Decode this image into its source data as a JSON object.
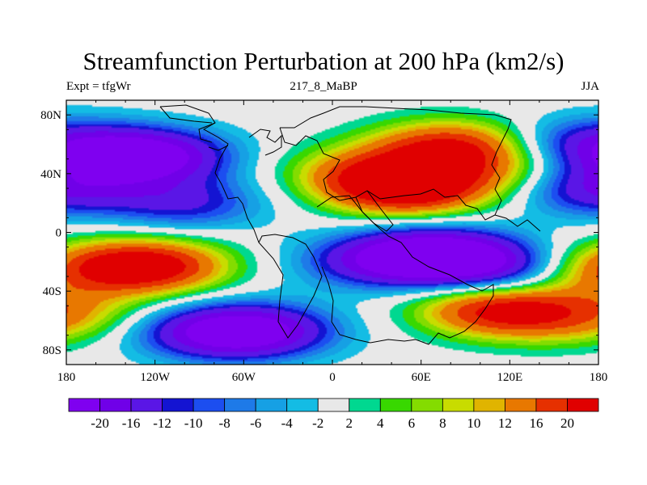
{
  "chart_data": {
    "type": "heatmap",
    "title": "Streamfunction Perturbation at 200 hPa (km2/s)",
    "subtitle_left": "Expt = tfgWr",
    "subtitle_center": "217_8_MaBP",
    "subtitle_right": "JJA",
    "x_range": [
      -180,
      180
    ],
    "y_range": [
      -90,
      90
    ],
    "x_ticks": [
      {
        "value": -180,
        "label": "180"
      },
      {
        "value": -120,
        "label": "120W"
      },
      {
        "value": -60,
        "label": "60W"
      },
      {
        "value": 0,
        "label": "0"
      },
      {
        "value": 60,
        "label": "60E"
      },
      {
        "value": 120,
        "label": "120E"
      },
      {
        "value": 180,
        "label": "180"
      }
    ],
    "y_ticks": [
      {
        "value": 80,
        "label": "80N"
      },
      {
        "value": 40,
        "label": "40N"
      },
      {
        "value": 0,
        "label": "0"
      },
      {
        "value": -40,
        "label": "40S"
      },
      {
        "value": -80,
        "label": "80S"
      }
    ],
    "contour_levels": [
      -20,
      -16,
      -12,
      -10,
      -8,
      -6,
      -4,
      -2,
      2,
      4,
      6,
      8,
      10,
      12,
      16,
      20
    ],
    "colorbar_labels": [
      "-20",
      "-16",
      "-12",
      "-10",
      "-8",
      "-6",
      "-4",
      "-2",
      "2",
      "4",
      "6",
      "8",
      "10",
      "12",
      "16",
      "20"
    ],
    "colors": [
      "#7f00f0",
      "#7000e8",
      "#5a16e6",
      "#1414d2",
      "#1c4ef0",
      "#1e7ae8",
      "#16a0e4",
      "#14bce4",
      "#e8e8e8",
      "#00d890",
      "#38d800",
      "#84dc00",
      "#c8dc00",
      "#e0b400",
      "#e87800",
      "#e63000",
      "#e00000"
    ],
    "field_centers": [
      {
        "lon": -125,
        "lat": 52,
        "value": -24
      },
      {
        "lon": -100,
        "lat": 20,
        "value": -12
      },
      {
        "lon": 175,
        "lat": 60,
        "value": -14
      },
      {
        "lon": 175,
        "lat": 30,
        "value": -16
      },
      {
        "lon": -125,
        "lat": -23,
        "value": 24
      },
      {
        "lon": 178,
        "lat": -25,
        "value": 10
      },
      {
        "lon": -85,
        "lat": -68,
        "value": -14
      },
      {
        "lon": -50,
        "lat": -67,
        "value": -18
      },
      {
        "lon": 70,
        "lat": -15,
        "value": -24
      },
      {
        "lon": 110,
        "lat": -25,
        "value": -14
      },
      {
        "lon": 28,
        "lat": -20,
        "value": -12
      },
      {
        "lon": 50,
        "lat": 30,
        "value": 26
      },
      {
        "lon": 80,
        "lat": 58,
        "value": 20
      },
      {
        "lon": 20,
        "lat": 42,
        "value": 10
      },
      {
        "lon": 120,
        "lat": 40,
        "value": 8
      },
      {
        "lon": 110,
        "lat": -52,
        "value": 20
      },
      {
        "lon": 150,
        "lat": -60,
        "value": 6
      },
      {
        "lon": -175,
        "lat": -55,
        "value": 8
      }
    ]
  }
}
